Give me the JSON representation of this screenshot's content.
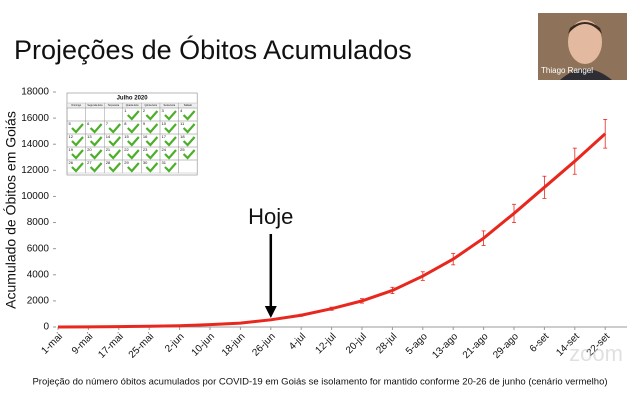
{
  "chart_data": {
    "type": "line",
    "title": "Projeções de Óbitos Acumulados",
    "y_label": "Acumulado de Óbitos em Goiás",
    "caption": "Projeção do número óbitos acumulados por COVID-19 em Goiás se isolamento for mantido conforme 20-26 de junho (cenário vermelho)",
    "annotation": "Hoje",
    "annotation_category": 7,
    "categories": [
      "1-mai",
      "9-mai",
      "17-mai",
      "25-mai",
      "2-jun",
      "10-jun",
      "18-jun",
      "26-jun",
      "4-jul",
      "12-jul",
      "20-jul",
      "28-jul",
      "5-ago",
      "13-ago",
      "21-ago",
      "29-ago",
      "6-set",
      "14-set",
      "22-set"
    ],
    "series": [
      {
        "color": "#e8281e",
        "values": [
          0,
          10,
          30,
          60,
          100,
          180,
          300,
          550,
          900,
          1400,
          2000,
          2800,
          3900,
          5200,
          6800,
          8700,
          10700,
          12700,
          14800
        ],
        "errors": [
          0,
          0,
          0,
          0,
          0,
          20,
          30,
          50,
          80,
          120,
          170,
          240,
          330,
          440,
          560,
          700,
          850,
          1000,
          1100
        ]
      }
    ],
    "ylim": [
      0,
      18000
    ],
    "yticks": [
      0,
      2000,
      4000,
      6000,
      8000,
      10000,
      12000,
      14000,
      16000,
      18000
    ],
    "calendar": {
      "title": "Julho 2020",
      "weekdays": [
        "Domingo",
        "Segunda-feira",
        "Terça-feira",
        "Quarta-feira",
        "Quinta-feira",
        "Sexta-feira",
        "Sábado"
      ],
      "first_weekday": 3,
      "days": [
        1,
        2,
        3,
        4,
        5,
        6,
        7,
        8,
        9,
        10,
        11,
        12,
        13,
        14,
        15,
        16,
        17,
        18,
        19,
        20,
        21,
        22,
        23,
        24,
        25,
        26,
        27,
        28,
        29,
        30,
        31
      ]
    },
    "participant": "Thiago Rangel",
    "watermark": "zoom"
  }
}
